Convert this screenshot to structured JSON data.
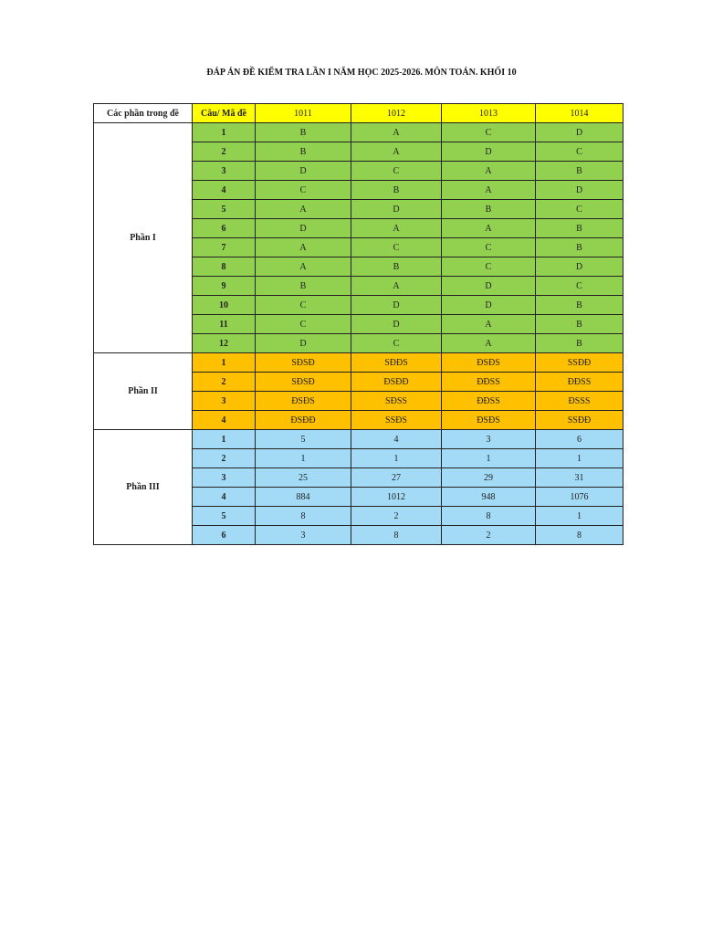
{
  "title": "ĐÁP ÁN ĐỀ KIỂM TRA LẦN I NĂM HỌC 2025-2026. MÔN TOÁN. KHỐI 10",
  "header": {
    "part_label": "Các phần trong đề",
    "question_label": "Câu/ Mã đề",
    "codes": [
      "1011",
      "1012",
      "1013",
      "1014"
    ]
  },
  "colors": {
    "header": "#ffff00",
    "part1": "#92d050",
    "part2": "#ffc000",
    "part3": "#a3dbf7"
  },
  "parts": [
    {
      "name": "Phần I",
      "rows": [
        {
          "q": "1",
          "answers": [
            "B",
            "A",
            "C",
            "D"
          ]
        },
        {
          "q": "2",
          "answers": [
            "B",
            "A",
            "D",
            "C"
          ]
        },
        {
          "q": "3",
          "answers": [
            "D",
            "C",
            "A",
            "B"
          ]
        },
        {
          "q": "4",
          "answers": [
            "C",
            "B",
            "A",
            "D"
          ]
        },
        {
          "q": "5",
          "answers": [
            "A",
            "D",
            "B",
            "C"
          ]
        },
        {
          "q": "6",
          "answers": [
            "D",
            "A",
            "A",
            "B"
          ]
        },
        {
          "q": "7",
          "answers": [
            "A",
            "C",
            "C",
            "B"
          ]
        },
        {
          "q": "8",
          "answers": [
            "A",
            "B",
            "C",
            "D"
          ]
        },
        {
          "q": "9",
          "answers": [
            "B",
            "A",
            "D",
            "C"
          ]
        },
        {
          "q": "10",
          "answers": [
            "C",
            "D",
            "D",
            "B"
          ]
        },
        {
          "q": "11",
          "answers": [
            "C",
            "D",
            "A",
            "B"
          ]
        },
        {
          "q": "12",
          "answers": [
            "D",
            "C",
            "A",
            "B"
          ]
        }
      ]
    },
    {
      "name": "Phần II",
      "rows": [
        {
          "q": "1",
          "answers": [
            "SĐSĐ",
            "SĐĐS",
            "ĐSĐS",
            "SSĐĐ"
          ]
        },
        {
          "q": "2",
          "answers": [
            "SĐSĐ",
            "ĐSĐĐ",
            "ĐĐSS",
            "ĐĐSS"
          ]
        },
        {
          "q": "3",
          "answers": [
            "ĐSĐS",
            "SĐSS",
            "ĐĐSS",
            "ĐSSS"
          ]
        },
        {
          "q": "4",
          "answers": [
            "ĐSĐĐ",
            "SSĐS",
            "ĐSĐS",
            "SSĐĐ"
          ]
        }
      ]
    },
    {
      "name": "Phần III",
      "rows": [
        {
          "q": "1",
          "answers": [
            "5",
            "4",
            "3",
            "6"
          ]
        },
        {
          "q": "2",
          "answers": [
            "1",
            "1",
            "1",
            "1"
          ]
        },
        {
          "q": "3",
          "answers": [
            "25",
            "27",
            "29",
            "31"
          ]
        },
        {
          "q": "4",
          "answers": [
            "884",
            "1012",
            "948",
            "1076"
          ]
        },
        {
          "q": "5",
          "answers": [
            "8",
            "2",
            "8",
            "1"
          ]
        },
        {
          "q": "6",
          "answers": [
            "3",
            "8",
            "2",
            "8"
          ]
        }
      ]
    }
  ]
}
